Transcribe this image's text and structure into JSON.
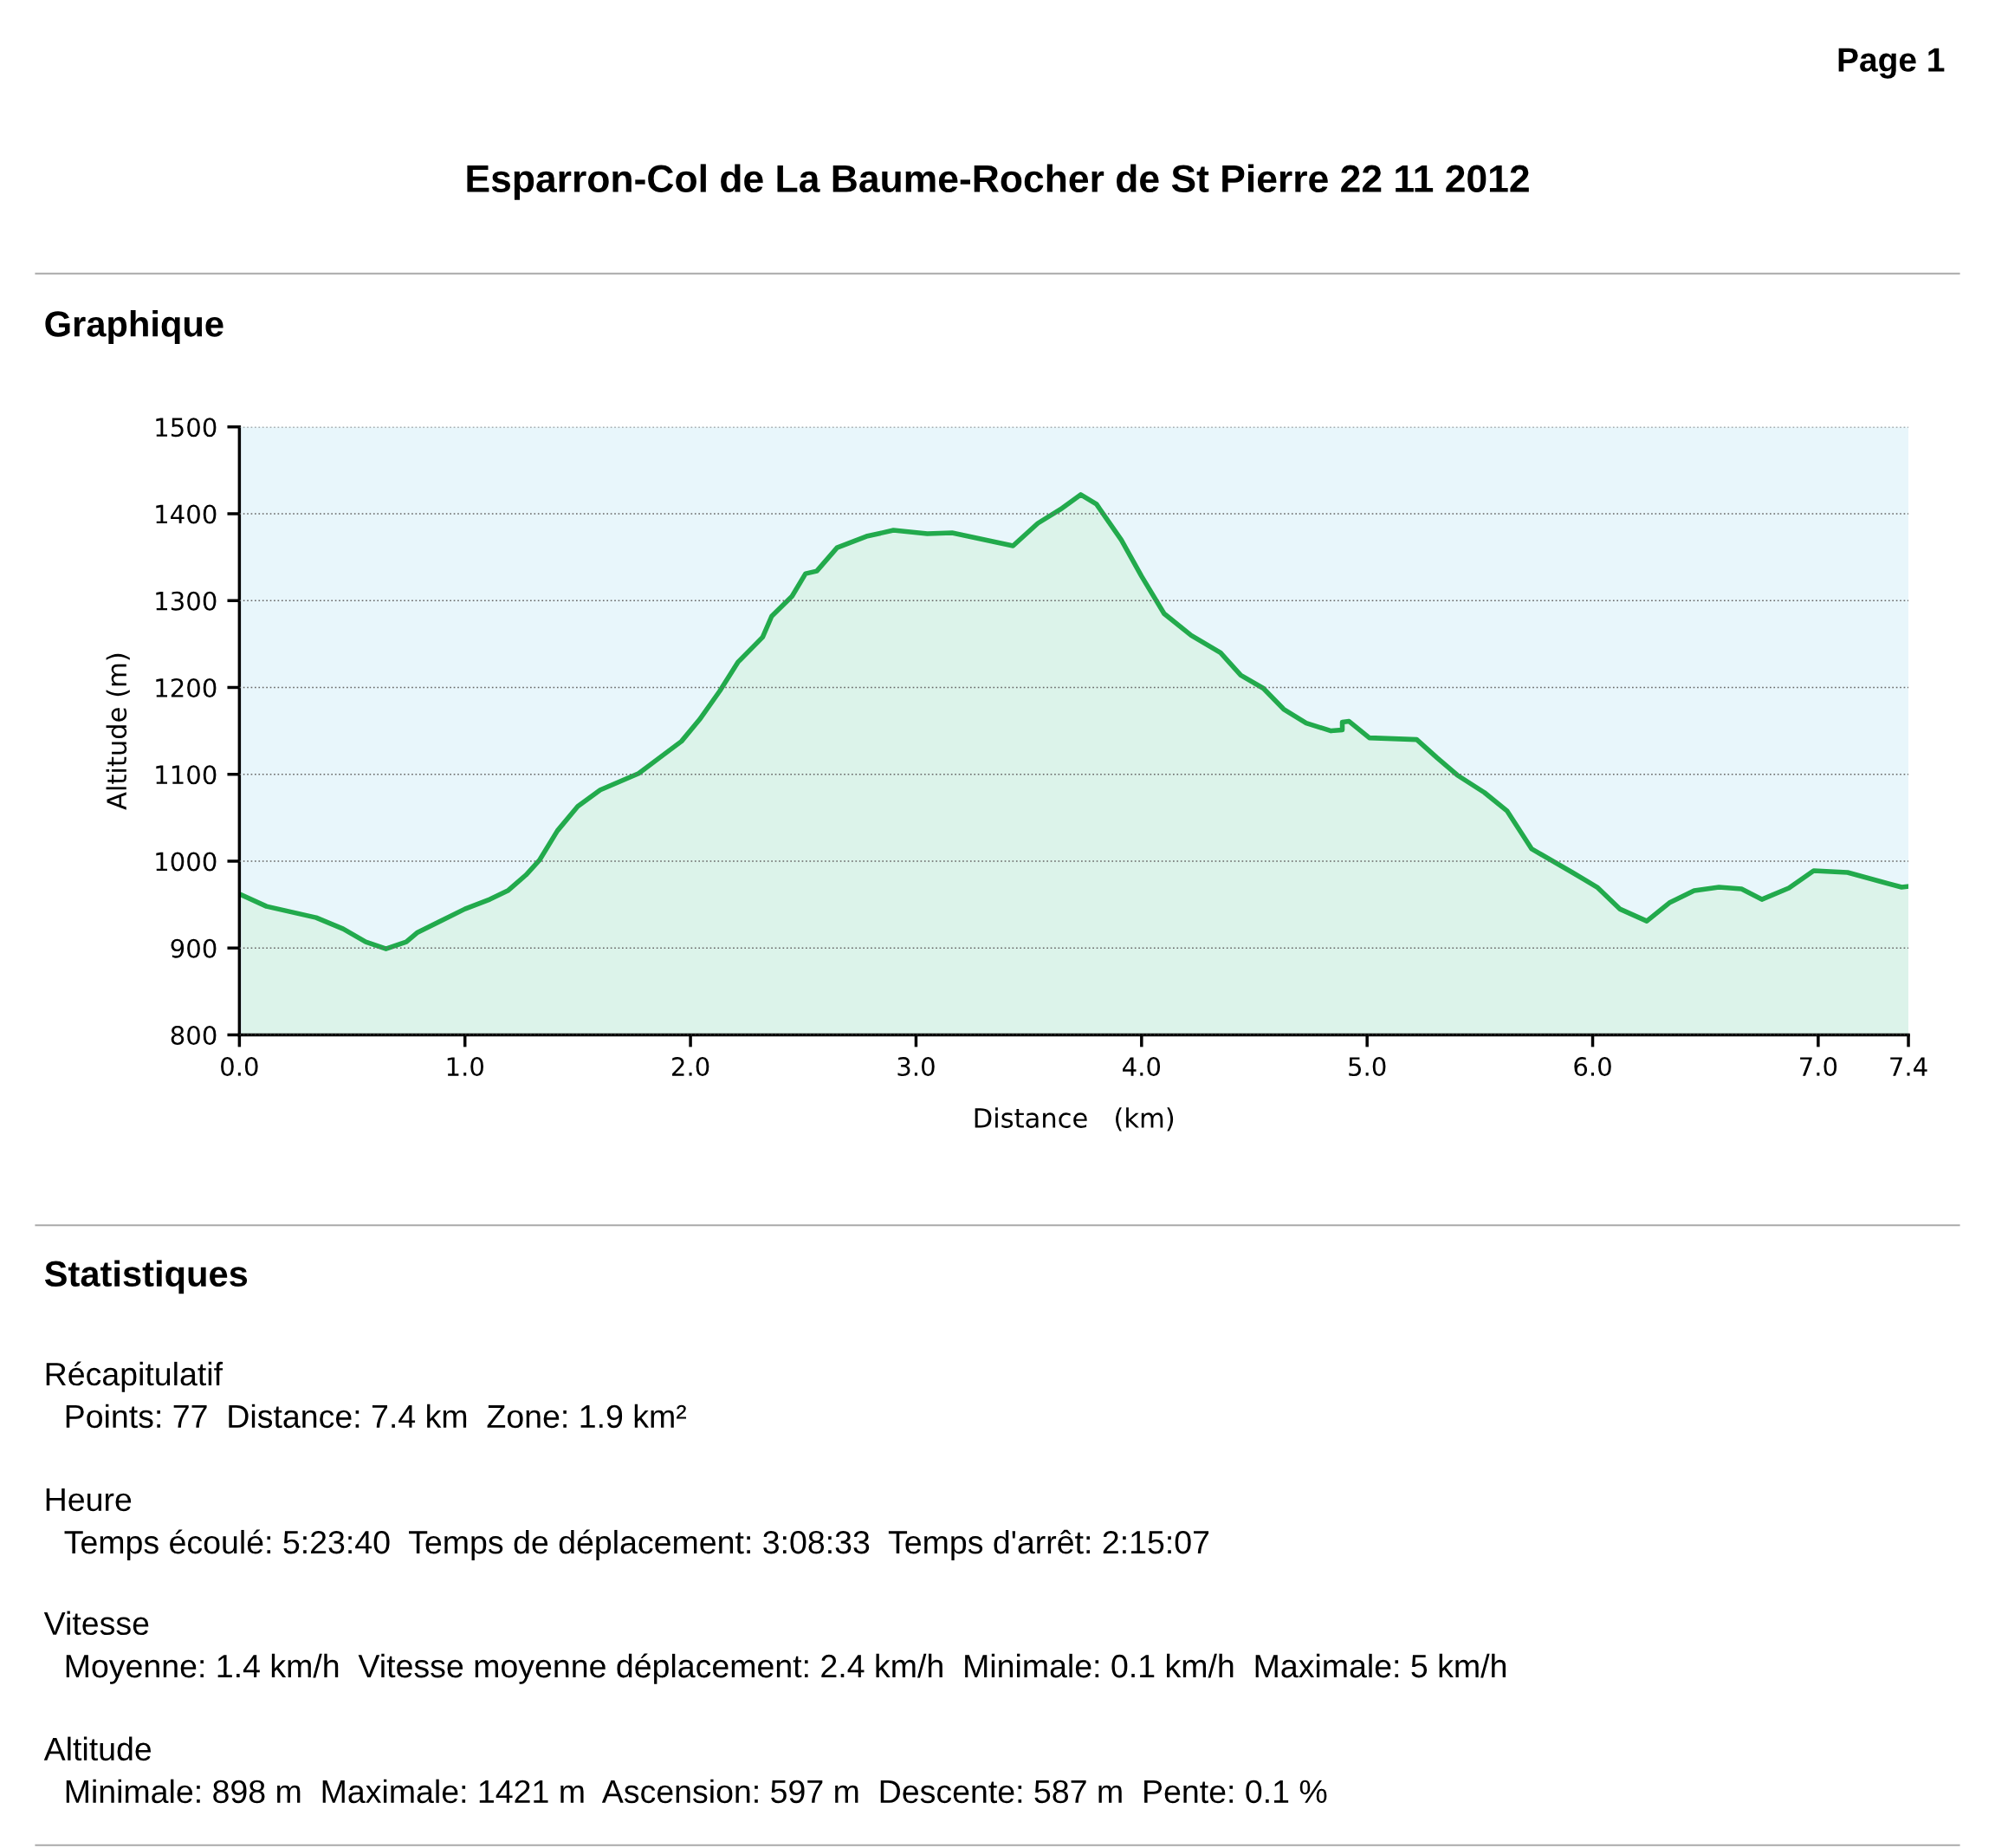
{
  "chart_data": {
    "type": "area",
    "title": "Esparron-Col de La Baume-Rocher de St Pierre 22 11 2012",
    "xlabel": "Distance   (km)",
    "ylabel": "Altitude (m)",
    "xlim": [
      0,
      7.4
    ],
    "ylim": [
      800,
      1500
    ],
    "xticks": [
      {
        "value": 0,
        "label": "0.0"
      },
      {
        "value": 1,
        "label": "1.0"
      },
      {
        "value": 2,
        "label": "2.0"
      },
      {
        "value": 3,
        "label": "3.0"
      },
      {
        "value": 4,
        "label": "4.0"
      },
      {
        "value": 5,
        "label": "5.0"
      },
      {
        "value": 6,
        "label": "6.0"
      },
      {
        "value": 7,
        "label": "7.0"
      },
      7.4
    ],
    "yticks": [
      800,
      900,
      1000,
      1100,
      1200,
      1300,
      1400,
      1500
    ],
    "grid": "y",
    "legend": false,
    "line_style": "solid",
    "marker": "none",
    "series": [
      {
        "color": "#22aa4c",
        "x": [
          0.01,
          0.12,
          0.34,
          0.46,
          0.56,
          0.65,
          0.74,
          0.79,
          1.0,
          1.11,
          1.19,
          1.27,
          1.33,
          1.41,
          1.5,
          1.6,
          1.77,
          1.96,
          2.04,
          2.13,
          2.21,
          2.32,
          2.36,
          2.45,
          2.51,
          2.56,
          2.65,
          2.78,
          2.9,
          3.05,
          3.16,
          3.43,
          3.54,
          3.64,
          3.73,
          3.8,
          3.91,
          4.0,
          4.1,
          4.22,
          4.35,
          4.44,
          4.54,
          4.63,
          4.73,
          4.84,
          4.89,
          4.89,
          4.92,
          5.01,
          5.22,
          5.31,
          5.4,
          5.52,
          5.62,
          5.73,
          5.91,
          6.02,
          6.12,
          6.24,
          6.34,
          6.45,
          6.56,
          6.66,
          6.75,
          6.87,
          6.98,
          7.13,
          7.27,
          7.37,
          7.4
        ],
        "values": [
          961,
          948,
          935,
          922,
          907,
          899,
          907,
          918,
          945,
          956,
          966,
          984,
          1001,
          1035,
          1063,
          1082,
          1101,
          1138,
          1163,
          1196,
          1229,
          1258,
          1282,
          1305,
          1331,
          1334,
          1361,
          1374,
          1381,
          1377,
          1378,
          1363,
          1389,
          1405,
          1422,
          1411,
          1370,
          1328,
          1285,
          1260,
          1240,
          1214,
          1199,
          1175,
          1159,
          1150,
          1151,
          1160,
          1161,
          1142,
          1140,
          1119,
          1099,
          1079,
          1058,
          1014,
          987,
          970,
          945,
          931,
          952,
          966,
          970,
          968,
          956,
          969,
          989,
          987,
          977,
          970,
          971
        ]
      }
    ],
    "annotations": [
      "Page 1",
      "Graphique",
      "Statistiques",
      "Récapitulatif",
      "Points: 77  Distance: 7.4 km  Zone: 1.9 km²",
      "Heure",
      "Temps écoulé: 5:23:40  Temps de déplacement: 3:08:33  Temps d'arrêt: 2:15:07",
      "Vitesse",
      "Moyenne: 1.4 km/h  Vitesse moyenne déplacement: 2.4 km/h  Minimale: 0.1 km/h  Maximale: 5 km/h",
      "Altitude",
      "Minimale: 898 m  Maximale: 1421 m  Ascension: 597 m  Descente: 587 m  Pente: 0.1 %"
    ]
  }
}
